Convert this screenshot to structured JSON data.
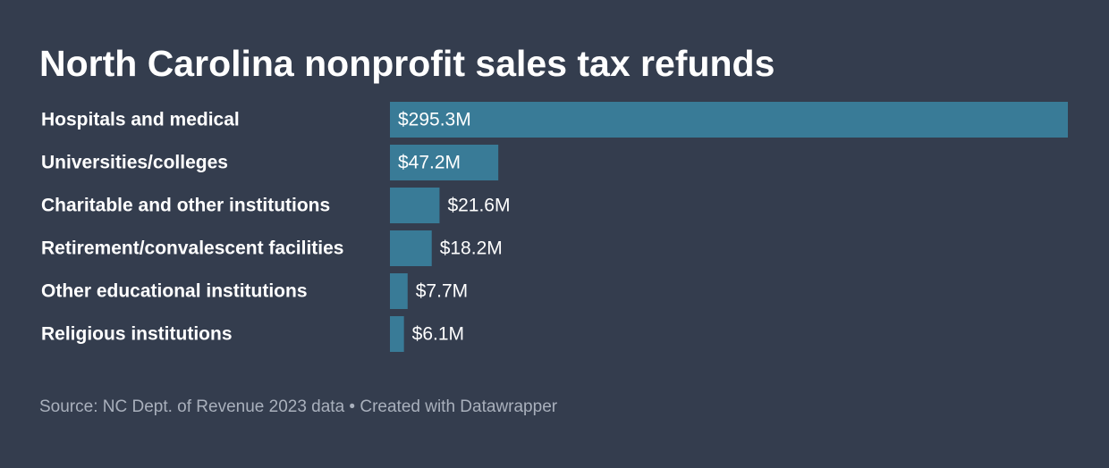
{
  "chart_data": {
    "type": "bar",
    "orientation": "horizontal",
    "title": "North Carolina nonprofit sales tax refunds",
    "categories": [
      "Hospitals and medical",
      "Universities/colleges",
      "Charitable and other institutions",
      "Retirement/convalescent facilities",
      "Other educational institutions",
      "Religious institutions"
    ],
    "values": [
      295.3,
      47.2,
      21.6,
      18.2,
      7.7,
      6.1
    ],
    "value_labels": [
      "$295.3M",
      "$47.2M",
      "$21.6M",
      "$18.2M",
      "$7.7M",
      "$6.1M"
    ],
    "unit": "$M",
    "xlim": [
      0,
      295.3
    ],
    "grid": false,
    "colors": {
      "bar": "#397b97",
      "background": "#343d4e",
      "text": "#ffffff",
      "source_text": "#a9b0bc"
    }
  },
  "footer": {
    "source": "Source: NC Dept. of Revenue 2023 data • Created with Datawrapper"
  }
}
